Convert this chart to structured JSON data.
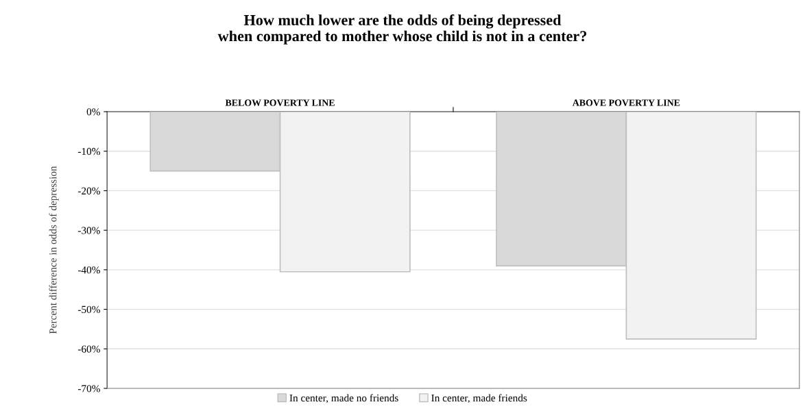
{
  "chart_data": {
    "type": "bar",
    "title": "How much lower are the odds of being depressed\nwhen compared to mother whose child is not in a center?",
    "ylabel": "Percent difference in odds of depression",
    "categories": [
      "BELOW POVERTY LINE",
      "ABOVE POVERTY LINE"
    ],
    "series": [
      {
        "name": "In center, made no friends",
        "color": "#d9d9d9",
        "values": [
          -15,
          -39
        ]
      },
      {
        "name": "In center, made friends",
        "color": "#f2f2f2",
        "values": [
          -40.5,
          -57.5
        ]
      }
    ],
    "ylim": [
      -70,
      0
    ],
    "yticks": [
      {
        "value": 0,
        "label": "0%"
      },
      {
        "value": -10,
        "label": "-10%"
      },
      {
        "value": -20,
        "label": "-20%"
      },
      {
        "value": -30,
        "label": "-30%"
      },
      {
        "value": -40,
        "label": "-40%"
      },
      {
        "value": -50,
        "label": "-50%"
      },
      {
        "value": -60,
        "label": "-60%"
      },
      {
        "value": -70,
        "label": "-70%"
      }
    ],
    "grid": "y",
    "legend": "bottom"
  }
}
